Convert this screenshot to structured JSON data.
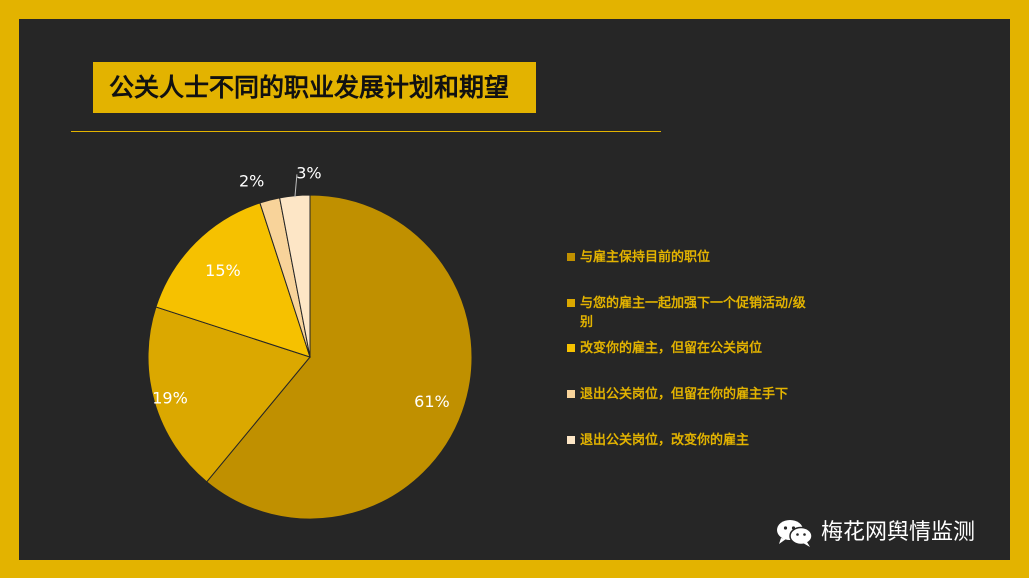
{
  "slide": {
    "title": "公关人士不同的职业发展计划和期望",
    "watermark_text": "梅花网舆情监测",
    "watermark_icon": "wechat-icon"
  },
  "colors": {
    "frame": "#e3b300",
    "background": "#262626",
    "title_bg": "#e3b300",
    "legend_text": "#e3b300"
  },
  "chart_data": {
    "type": "pie",
    "title": "",
    "series": [
      {
        "label": "与雇主保持目前的职位",
        "value": 61,
        "value_label": "61%",
        "color": "#c09000"
      },
      {
        "label": "与您的雇主一起加强下一个促销活动/级别",
        "value": 19,
        "value_label": "19%",
        "color": "#dba800"
      },
      {
        "label": "改变你的雇主，但留在公关岗位",
        "value": 15,
        "value_label": "15%",
        "color": "#f6c100"
      },
      {
        "label": "退出公关岗位，但留在你的雇主手下",
        "value": 2,
        "value_label": "2%",
        "color": "#f8d39a"
      },
      {
        "label": "退出公关岗位，改变你的雇主",
        "value": 3,
        "value_label": "3%",
        "color": "#fde6c6"
      }
    ],
    "legend_position": "right"
  }
}
